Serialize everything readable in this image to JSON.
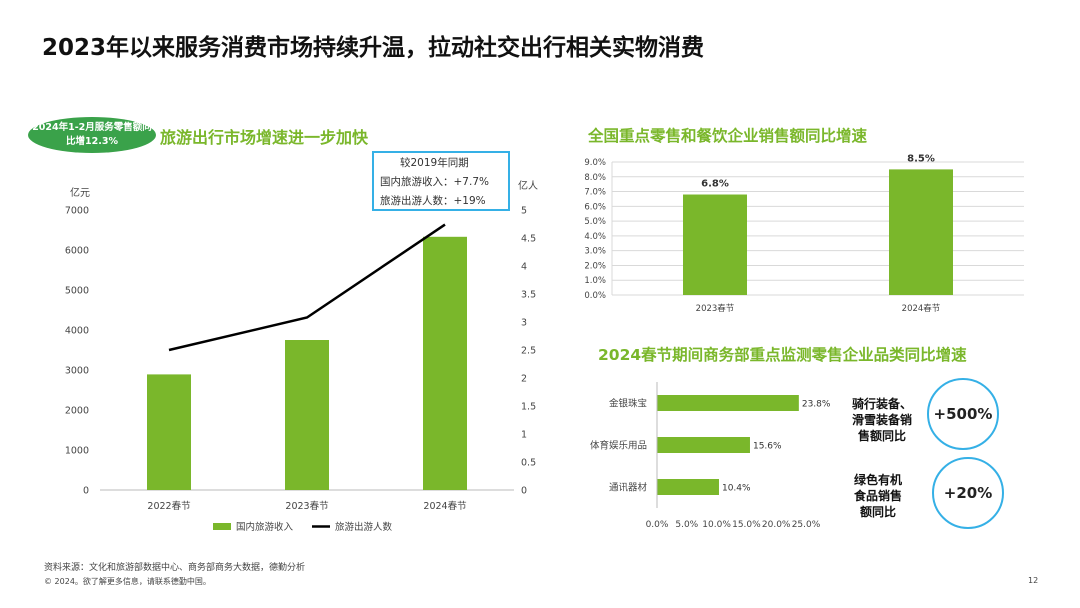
{
  "page": {
    "title": "2023年以来服务消费市场持续升温，拉动社交出行相关实物消费",
    "badge": "2024年1-2月服务零售额同比增12.3%",
    "source": "资料来源：文化和旅游部数据中心、商务部商务大数据，德勤分析",
    "copyright": "© 2024。欲了解更多信息，请联系德勤中国。",
    "page_number": "12"
  },
  "callout": {
    "title": "较2019年同期",
    "line1": "国内旅游收入：+7.7%",
    "line2": "旅游出游人数：+19%"
  },
  "stats": [
    {
      "label": "骑行装备、\n滑雪装备销\n售额同比",
      "value": "+500%"
    },
    {
      "label": "绿色有机\n食品销售\n额同比",
      "value": "+20%"
    }
  ],
  "colors": {
    "bar": "#7ab72b",
    "line": "#000000",
    "badge": "#3aa24a",
    "circle_border": "#35b0e6"
  },
  "chart_data": [
    {
      "type": "bar",
      "title": "旅游出行市场增速进一步加快",
      "categories": [
        "2022春节",
        "2023春节",
        "2024春节"
      ],
      "series": [
        {
          "name": "国内旅游收入",
          "type": "bar",
          "axis": "left",
          "values": [
            2890,
            3750,
            6330
          ]
        },
        {
          "name": "旅游出游人数",
          "type": "line",
          "axis": "right",
          "values": [
            2.5,
            3.08,
            4.74
          ]
        }
      ],
      "ylabel": "亿元",
      "y2label": "亿人",
      "ylim": [
        0,
        7000
      ],
      "y2lim": [
        0,
        5
      ],
      "yticks": [
        "0",
        "1000",
        "2000",
        "3000",
        "4000",
        "5000",
        "6000",
        "7000"
      ],
      "y2ticks": [
        "0",
        "0.5",
        "1",
        "1.5",
        "2",
        "2.5",
        "3",
        "3.5",
        "4",
        "4.5",
        "5"
      ],
      "legend": "bottom",
      "grid": false
    },
    {
      "type": "bar",
      "title": "全国重点零售和餐饮企业销售额同比增速",
      "categories": [
        "2023春节",
        "2024春节"
      ],
      "values": [
        6.8,
        8.5
      ],
      "value_labels": [
        "6.8%",
        "8.5%"
      ],
      "ylim": [
        0,
        9
      ],
      "yticks": [
        "0.0%",
        "1.0%",
        "2.0%",
        "3.0%",
        "4.0%",
        "5.0%",
        "6.0%",
        "7.0%",
        "8.0%",
        "9.0%"
      ],
      "grid": true
    },
    {
      "type": "bar",
      "orientation": "horizontal",
      "title": "2024春节期间商务部重点监测零售企业品类同比增速",
      "categories": [
        "金银珠宝",
        "体育娱乐用品",
        "通讯器材"
      ],
      "values": [
        23.8,
        15.6,
        10.4
      ],
      "value_labels": [
        "23.8%",
        "15.6%",
        "10.4%"
      ],
      "xlim": [
        0,
        25
      ],
      "xticks": [
        "0.0%",
        "5.0%",
        "10.0%",
        "15.0%",
        "20.0%",
        "25.0%"
      ],
      "grid": false
    }
  ]
}
